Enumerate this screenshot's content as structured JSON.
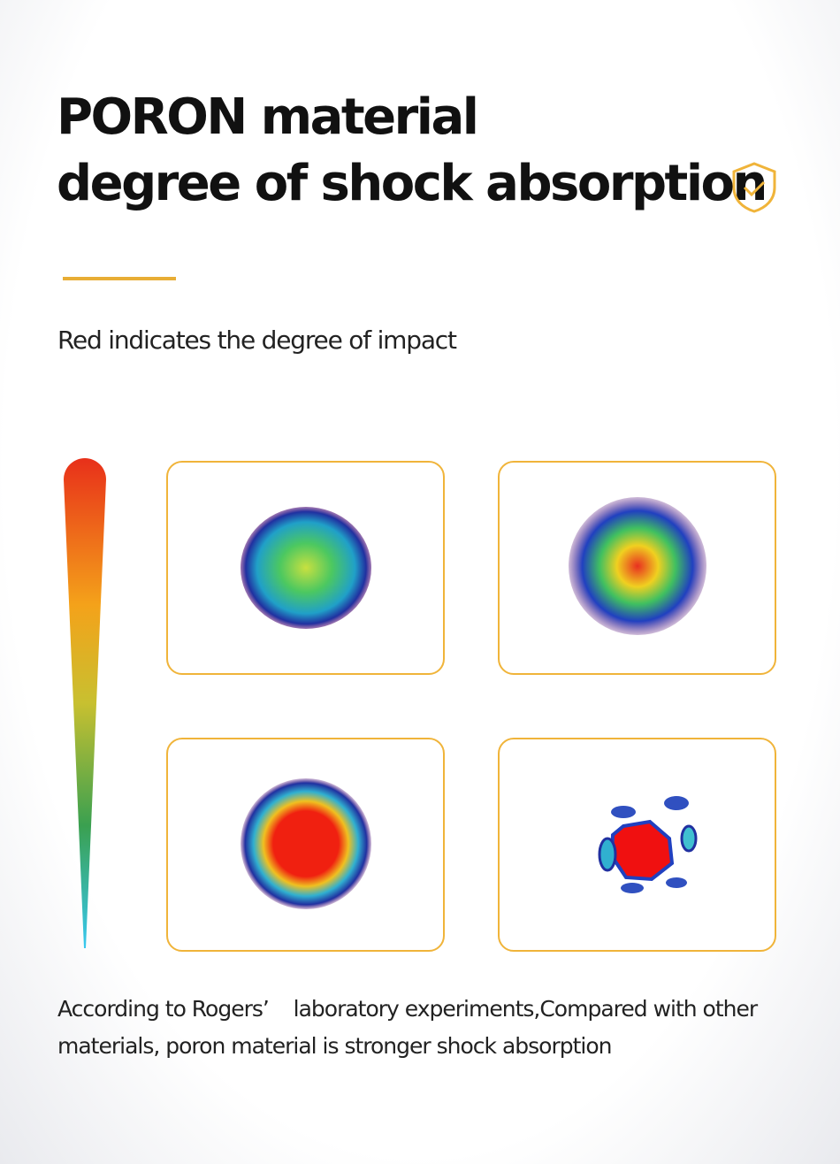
{
  "header": {
    "title_lines": [
      "PORON material",
      "degree of shock absorption"
    ],
    "subtitle": "Red indicates the degree of impact"
  },
  "footer": {
    "text": "According to Rogers’    laboratory experiments,Compared with other materials, poron material is stronger shock absorption"
  }
}
